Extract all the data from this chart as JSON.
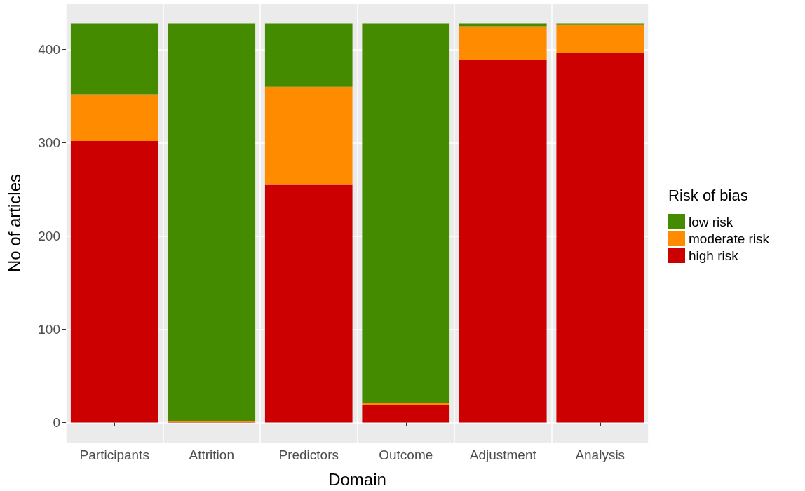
{
  "chart_data": {
    "type": "bar",
    "xlabel": "Domain",
    "ylabel": "No of articles",
    "legend_title": "Risk of bias",
    "categories": [
      "Participants",
      "Attrition",
      "Predictors",
      "Outcome",
      "Adjustment",
      "Analysis"
    ],
    "series": [
      {
        "name": "high risk",
        "color": "#cc0000",
        "values": [
          302,
          1,
          255,
          19,
          389,
          396
        ]
      },
      {
        "name": "moderate risk",
        "color": "#ff8c00",
        "values": [
          50,
          1,
          105,
          2,
          36,
          31
        ]
      },
      {
        "name": "low risk",
        "color": "#458b00",
        "values": [
          76,
          426,
          68,
          407,
          3,
          1
        ]
      }
    ],
    "stacked": true,
    "ylim": [
      -21.4,
      449.4
    ],
    "yticks": [
      0,
      100,
      200,
      300,
      400
    ],
    "grid": true,
    "legend": "right"
  }
}
